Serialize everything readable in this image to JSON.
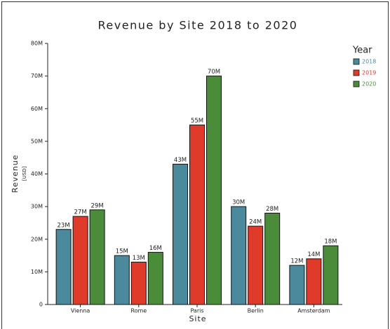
{
  "chart_data": {
    "type": "bar",
    "title": "Revenue by Site 2018 to 2020",
    "x_label": "Site",
    "y_label": "Revenue",
    "y_sublabel": "[USD]",
    "legend_title": "Year",
    "legend_position": "top-right",
    "categories": [
      "Vienna",
      "Rome",
      "Paris",
      "Berlin",
      "Amsterdam"
    ],
    "series": [
      {
        "name": "2018",
        "color": "#4a8a9c",
        "values": [
          23000000,
          15000000,
          43000000,
          30000000,
          12000000
        ],
        "value_labels": [
          "23M",
          "15M",
          "43M",
          "30M",
          "12M"
        ]
      },
      {
        "name": "2019",
        "color": "#e03a2a",
        "values": [
          27000000,
          13000000,
          55000000,
          24000000,
          14000000
        ],
        "value_labels": [
          "27M",
          "13M",
          "55M",
          "24M",
          "14M"
        ]
      },
      {
        "name": "2020",
        "color": "#4a8c3a",
        "values": [
          29000000,
          16000000,
          70000000,
          28000000,
          18000000
        ],
        "value_labels": [
          "29M",
          "16M",
          "70M",
          "28M",
          "18M"
        ]
      }
    ],
    "ylim": [
      0,
      80000000
    ],
    "yticks": [
      0,
      {
        "value": 10000000,
        "label": "10M"
      },
      {
        "value": 20000000,
        "label": "20M"
      },
      {
        "value": 30000000,
        "label": "30M"
      },
      {
        "value": 40000000,
        "label": "40M"
      },
      {
        "value": 50000000,
        "label": "50M"
      },
      {
        "value": 60000000,
        "label": "60M"
      },
      {
        "value": 70000000,
        "label": "70M"
      },
      {
        "value": 80000000,
        "label": "80M"
      }
    ]
  }
}
